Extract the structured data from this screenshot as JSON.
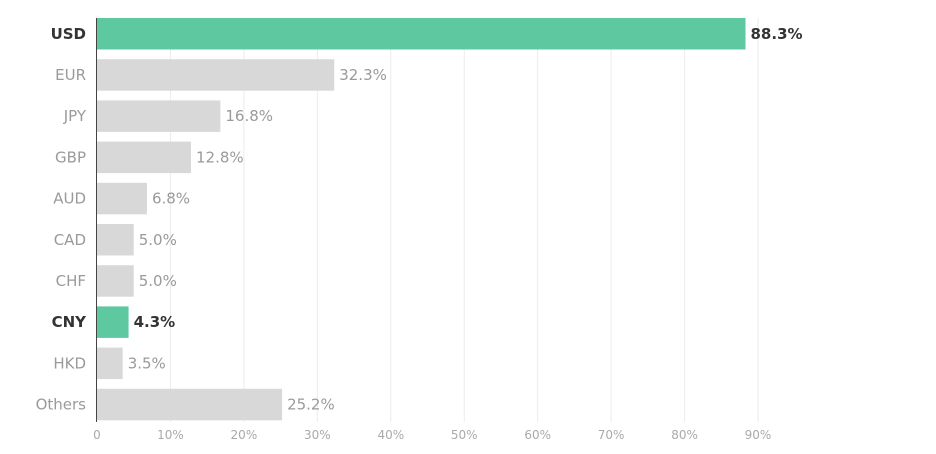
{
  "chart_data": {
    "type": "bar",
    "orientation": "horizontal",
    "categories": [
      "USD",
      "EUR",
      "JPY",
      "GBP",
      "AUD",
      "CAD",
      "CHF",
      "CNY",
      "HKD",
      "Others"
    ],
    "values": [
      88.3,
      32.3,
      16.8,
      12.8,
      6.8,
      5.0,
      5.0,
      4.3,
      3.5,
      25.2
    ],
    "value_labels": [
      "88.3%",
      "32.3%",
      "16.8%",
      "12.8%",
      "6.8%",
      "5.0%",
      "5.0%",
      "4.3%",
      "3.5%",
      "25.2%"
    ],
    "highlighted": [
      "USD",
      "CNY"
    ],
    "xlim": [
      0,
      90
    ],
    "x_ticks": [
      0,
      10,
      20,
      30,
      40,
      50,
      60,
      70,
      80,
      90
    ],
    "x_tick_labels": [
      "0",
      "10%",
      "20%",
      "30%",
      "40%",
      "50%",
      "60%",
      "70%",
      "80%",
      "90%"
    ],
    "grid": true,
    "colors": {
      "highlight": "#5ec9a0",
      "default": "#d8d8d8",
      "grid": "#ebebeb",
      "axis": "#444444"
    }
  }
}
